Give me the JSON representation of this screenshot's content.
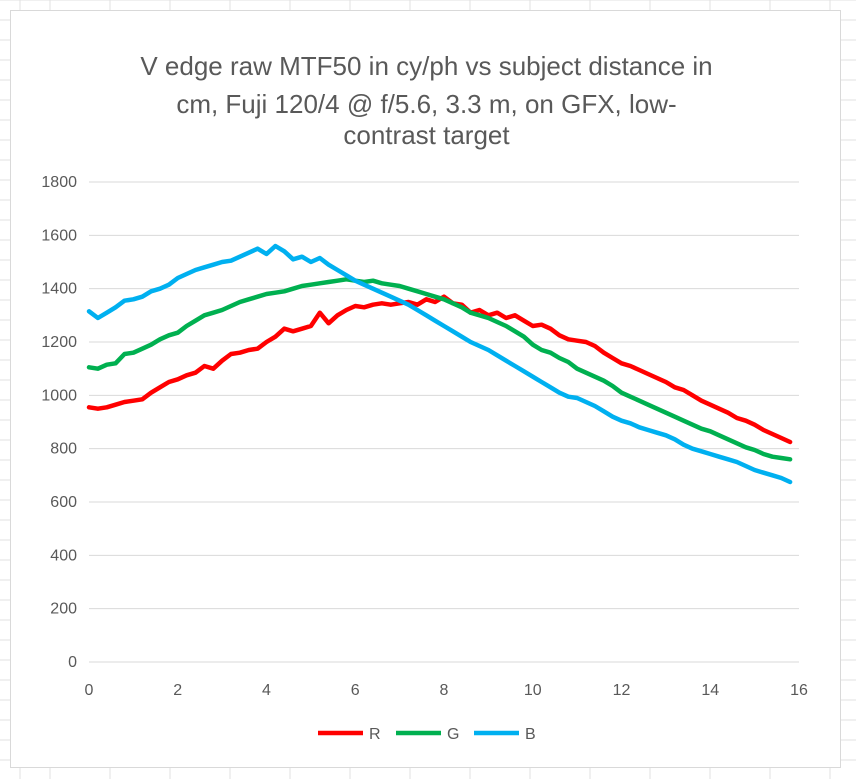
{
  "chart_data": {
    "type": "line",
    "title_lines": [
      "V edge raw MTF50 in cy/ph vs subject distance in",
      "cm, Fuji 120/4 @ f/5.6, 3.3 m, on GFX, low-",
      "contrast target"
    ],
    "xlabel": "",
    "ylabel": "",
    "xlim": [
      0,
      16
    ],
    "ylim": [
      0,
      1800
    ],
    "x_ticks": [
      "0",
      "2",
      "4",
      "6",
      "8",
      "10",
      "12",
      "14",
      "16"
    ],
    "y_ticks": [
      "0",
      "200",
      "400",
      "600",
      "800",
      "1000",
      "1200",
      "1400",
      "1600",
      "1800"
    ],
    "grid": "horizontal",
    "legend_position": "bottom",
    "series": [
      {
        "name": "R",
        "color": "#ff0000",
        "x": [
          0,
          0.2,
          0.4,
          0.6,
          0.8,
          1,
          1.2,
          1.4,
          1.6,
          1.8,
          2,
          2.2,
          2.4,
          2.6,
          2.8,
          3,
          3.2,
          3.4,
          3.6,
          3.8,
          4,
          4.2,
          4.4,
          4.6,
          4.8,
          5,
          5.2,
          5.4,
          5.6,
          5.8,
          6,
          6.2,
          6.4,
          6.6,
          6.8,
          7,
          7.2,
          7.4,
          7.6,
          7.8,
          8,
          8.2,
          8.4,
          8.6,
          8.8,
          9,
          9.2,
          9.4,
          9.6,
          9.8,
          10,
          10.2,
          10.4,
          10.6,
          10.8,
          11,
          11.2,
          11.4,
          11.6,
          11.8,
          12,
          12.2,
          12.4,
          12.6,
          12.8,
          13,
          13.2,
          13.4,
          13.6,
          13.8,
          14,
          14.2,
          14.4,
          14.6,
          14.8,
          15,
          15.2,
          15.4,
          15.6,
          15.8
        ],
        "y": [
          955,
          950,
          955,
          965,
          975,
          980,
          985,
          1010,
          1030,
          1050,
          1060,
          1075,
          1085,
          1110,
          1100,
          1130,
          1155,
          1160,
          1170,
          1175,
          1200,
          1220,
          1250,
          1240,
          1250,
          1260,
          1310,
          1270,
          1300,
          1320,
          1335,
          1330,
          1340,
          1345,
          1340,
          1345,
          1350,
          1340,
          1360,
          1350,
          1370,
          1345,
          1340,
          1310,
          1320,
          1300,
          1310,
          1290,
          1300,
          1280,
          1260,
          1265,
          1250,
          1225,
          1210,
          1205,
          1200,
          1185,
          1160,
          1140,
          1120,
          1110,
          1095,
          1080,
          1065,
          1050,
          1030,
          1020,
          1000,
          980,
          965,
          950,
          935,
          915,
          905,
          890,
          870,
          855,
          840,
          825
        ]
      },
      {
        "name": "G",
        "color": "#00b050",
        "x": [
          0,
          0.2,
          0.4,
          0.6,
          0.8,
          1,
          1.2,
          1.4,
          1.6,
          1.8,
          2,
          2.2,
          2.4,
          2.6,
          2.8,
          3,
          3.2,
          3.4,
          3.6,
          3.8,
          4,
          4.2,
          4.4,
          4.6,
          4.8,
          5,
          5.2,
          5.4,
          5.6,
          5.8,
          6,
          6.2,
          6.4,
          6.6,
          6.8,
          7,
          7.2,
          7.4,
          7.6,
          7.8,
          8,
          8.2,
          8.4,
          8.6,
          8.8,
          9,
          9.2,
          9.4,
          9.6,
          9.8,
          10,
          10.2,
          10.4,
          10.6,
          10.8,
          11,
          11.2,
          11.4,
          11.6,
          11.8,
          12,
          12.2,
          12.4,
          12.6,
          12.8,
          13,
          13.2,
          13.4,
          13.6,
          13.8,
          14,
          14.2,
          14.4,
          14.6,
          14.8,
          15,
          15.2,
          15.4,
          15.6,
          15.8
        ],
        "y": [
          1105,
          1100,
          1115,
          1120,
          1155,
          1160,
          1175,
          1190,
          1210,
          1225,
          1235,
          1260,
          1280,
          1300,
          1310,
          1320,
          1335,
          1350,
          1360,
          1370,
          1380,
          1385,
          1390,
          1400,
          1410,
          1415,
          1420,
          1425,
          1430,
          1435,
          1430,
          1425,
          1430,
          1420,
          1415,
          1410,
          1400,
          1390,
          1380,
          1370,
          1360,
          1345,
          1330,
          1310,
          1300,
          1290,
          1275,
          1260,
          1240,
          1220,
          1190,
          1170,
          1160,
          1140,
          1125,
          1100,
          1085,
          1070,
          1055,
          1035,
          1010,
          995,
          980,
          965,
          950,
          935,
          920,
          905,
          890,
          875,
          865,
          850,
          835,
          820,
          805,
          795,
          780,
          770,
          765,
          760
        ]
      },
      {
        "name": "B",
        "color": "#00b0f0",
        "x": [
          0,
          0.2,
          0.4,
          0.6,
          0.8,
          1,
          1.2,
          1.4,
          1.6,
          1.8,
          2,
          2.2,
          2.4,
          2.6,
          2.8,
          3,
          3.2,
          3.4,
          3.6,
          3.8,
          4,
          4.2,
          4.4,
          4.6,
          4.8,
          5,
          5.2,
          5.4,
          5.6,
          5.8,
          6,
          6.2,
          6.4,
          6.6,
          6.8,
          7,
          7.2,
          7.4,
          7.6,
          7.8,
          8,
          8.2,
          8.4,
          8.6,
          8.8,
          9,
          9.2,
          9.4,
          9.6,
          9.8,
          10,
          10.2,
          10.4,
          10.6,
          10.8,
          11,
          11.2,
          11.4,
          11.6,
          11.8,
          12,
          12.2,
          12.4,
          12.6,
          12.8,
          13,
          13.2,
          13.4,
          13.6,
          13.8,
          14,
          14.2,
          14.4,
          14.6,
          14.8,
          15,
          15.2,
          15.4,
          15.6,
          15.8
        ],
        "y": [
          1315,
          1290,
          1310,
          1330,
          1355,
          1360,
          1370,
          1390,
          1400,
          1415,
          1440,
          1455,
          1470,
          1480,
          1490,
          1500,
          1505,
          1520,
          1535,
          1550,
          1530,
          1560,
          1540,
          1510,
          1520,
          1500,
          1515,
          1490,
          1470,
          1450,
          1430,
          1415,
          1400,
          1385,
          1370,
          1355,
          1340,
          1320,
          1300,
          1280,
          1260,
          1240,
          1220,
          1200,
          1185,
          1170,
          1150,
          1130,
          1110,
          1090,
          1070,
          1050,
          1030,
          1010,
          995,
          990,
          975,
          960,
          940,
          920,
          905,
          895,
          880,
          870,
          860,
          850,
          835,
          815,
          800,
          790,
          780,
          770,
          760,
          750,
          735,
          720,
          710,
          700,
          690,
          675
        ]
      }
    ]
  }
}
